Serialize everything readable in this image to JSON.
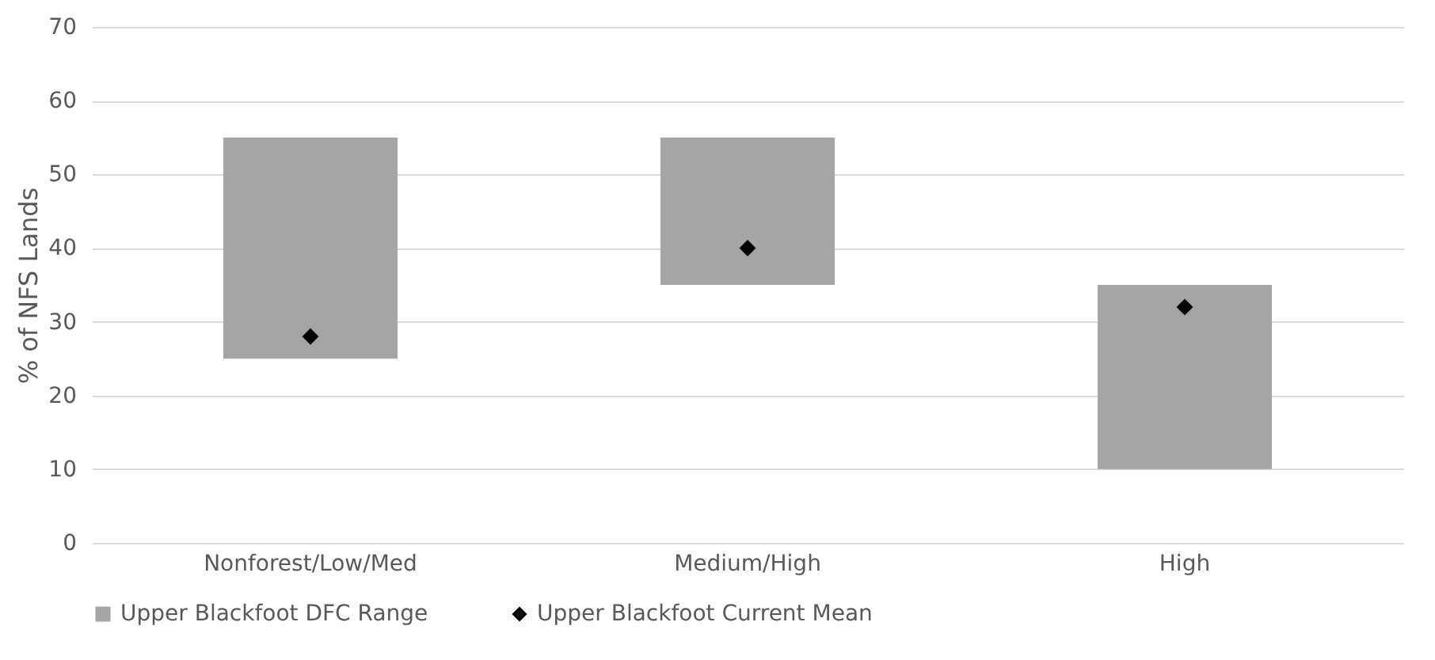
{
  "chart_data": {
    "type": "bar",
    "ylabel": "% of NFS Lands",
    "categories": [
      "Nonforest/Low/Med",
      "Medium/High",
      "High"
    ],
    "series": [
      {
        "name": "Upper Blackfoot DFC Range",
        "type": "bar",
        "color": "#a5a5a5",
        "base": [
          25,
          35,
          10
        ],
        "values": [
          30,
          20,
          25
        ]
      },
      {
        "name": "Upper Blackfoot Current Mean",
        "type": "scatter",
        "marker": "diamond",
        "color": "#000000",
        "x": [
          "Nonforest/Low/Med",
          "Medium/High",
          "High"
        ],
        "values": [
          28,
          40,
          32
        ]
      }
    ],
    "ylim": [
      0,
      70
    ],
    "yticks": [
      0,
      10,
      20,
      30,
      40,
      50,
      60,
      70
    ],
    "grid": "y",
    "legend": "bottom"
  }
}
